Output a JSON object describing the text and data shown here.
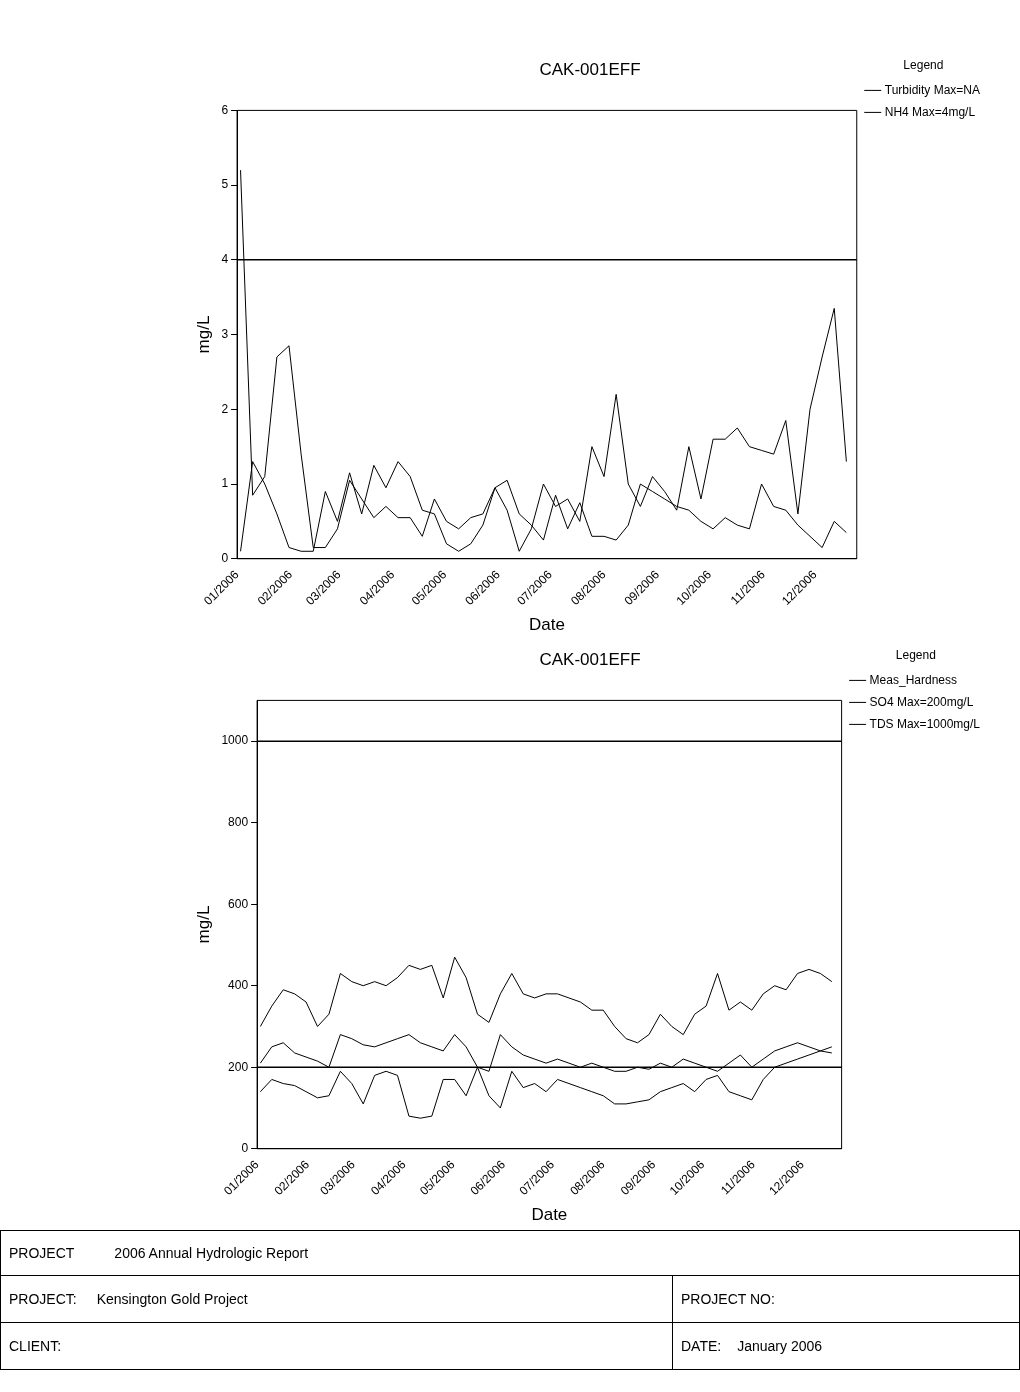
{
  "chart_data": [
    {
      "type": "line",
      "title": "CAK-001EFF",
      "xlabel": "Date",
      "ylabel": "mg/L",
      "legend": "top right",
      "legend_title": "Legend",
      "x": [
        "2006-01-03",
        "2006-01-10",
        "2006-01-17",
        "2006-01-24",
        "2006-01-31",
        "2006-02-07",
        "2006-02-14",
        "2006-02-21",
        "2006-02-28",
        "2006-03-07",
        "2006-03-14",
        "2006-03-21",
        "2006-03-28",
        "2006-04-04",
        "2006-04-11",
        "2006-04-18",
        "2006-04-25",
        "2006-05-02",
        "2006-05-09",
        "2006-05-16",
        "2006-05-23",
        "2006-05-30",
        "2006-06-06",
        "2006-06-13",
        "2006-06-20",
        "2006-06-27",
        "2006-07-04",
        "2006-07-11",
        "2006-07-18",
        "2006-07-25",
        "2006-08-01",
        "2006-08-08",
        "2006-08-15",
        "2006-08-22",
        "2006-08-29",
        "2006-09-05",
        "2006-09-12",
        "2006-09-19",
        "2006-09-26",
        "2006-10-03",
        "2006-10-10",
        "2006-10-17",
        "2006-10-24",
        "2006-10-31",
        "2006-11-07",
        "2006-11-14",
        "2006-11-21",
        "2006-11-28",
        "2006-12-05",
        "2006-12-12",
        "2006-12-19"
      ],
      "series": [
        {
          "name": "Turbidity Max=NA",
          "color": "#000000",
          "values": [
            5.2,
            0.85,
            1.1,
            2.7,
            2.85,
            1.4,
            0.15,
            0.15,
            0.4,
            1.05,
            0.8,
            0.55,
            0.7,
            0.55,
            0.55,
            0.3,
            0.8,
            0.5,
            0.4,
            0.55,
            0.6,
            0.95,
            1.05,
            0.6,
            0.45,
            0.25,
            0.85,
            0.4,
            0.75,
            0.3,
            0.3,
            0.25,
            0.45,
            1.0,
            0.9,
            0.8,
            0.7,
            0.65,
            0.5,
            0.4,
            0.55,
            0.45,
            0.4,
            1.0,
            0.7,
            0.65,
            0.45,
            0.3,
            0.15,
            0.5,
            0.35
          ]
        },
        {
          "name": "NH4 Max=4mg/L",
          "color": "#000000",
          "values": [
            0.1,
            1.3,
            1.0,
            0.6,
            0.15,
            0.1,
            0.1,
            0.9,
            0.5,
            1.15,
            0.6,
            1.25,
            0.95,
            1.3,
            1.1,
            0.65,
            0.6,
            0.2,
            0.1,
            0.2,
            0.45,
            0.95,
            0.65,
            0.1,
            0.4,
            1.0,
            0.7,
            0.8,
            0.5,
            1.5,
            1.1,
            2.2,
            1.0,
            0.7,
            1.1,
            0.9,
            0.65,
            1.5,
            0.8,
            1.6,
            1.6,
            1.75,
            1.5,
            1.45,
            1.4,
            1.85,
            0.6,
            2.0,
            2.7,
            3.35,
            1.3
          ]
        }
      ],
      "xlim": [
        "2006-01-01",
        "2006-12-25"
      ],
      "xticks": [
        {
          "value": "2006-01-01",
          "label": "01/2006"
        },
        {
          "value": "2006-02-01",
          "label": "02/2006"
        },
        {
          "value": "2006-03-01",
          "label": "03/2006"
        },
        {
          "value": "2006-04-01",
          "label": "04/2006"
        },
        {
          "value": "2006-05-01",
          "label": "05/2006"
        },
        {
          "value": "2006-06-01",
          "label": "06/2006"
        },
        {
          "value": "2006-07-01",
          "label": "07/2006"
        },
        {
          "value": "2006-08-01",
          "label": "08/2006"
        },
        {
          "value": "2006-09-01",
          "label": "09/2006"
        },
        {
          "value": "2006-10-01",
          "label": "10/2006"
        },
        {
          "value": "2006-11-01",
          "label": "11/2006"
        },
        {
          "value": "2006-12-01",
          "label": "12/2006"
        }
      ],
      "ylim": [
        0,
        6
      ],
      "yticks": [
        0,
        1,
        2,
        3,
        4,
        5,
        6
      ],
      "ref_lines": [
        {
          "axis": "y",
          "value": 4
        }
      ]
    },
    {
      "type": "line",
      "title": "CAK-001EFF",
      "xlabel": "Date",
      "ylabel": "mg/L",
      "legend": "top right",
      "legend_title": "Legend",
      "x": [
        "2006-01-03",
        "2006-01-10",
        "2006-01-17",
        "2006-01-24",
        "2006-01-31",
        "2006-02-07",
        "2006-02-14",
        "2006-02-21",
        "2006-02-28",
        "2006-03-07",
        "2006-03-14",
        "2006-03-21",
        "2006-03-28",
        "2006-04-04",
        "2006-04-11",
        "2006-04-18",
        "2006-04-25",
        "2006-05-02",
        "2006-05-09",
        "2006-05-16",
        "2006-05-23",
        "2006-05-30",
        "2006-06-06",
        "2006-06-13",
        "2006-06-20",
        "2006-06-27",
        "2006-07-04",
        "2006-07-11",
        "2006-07-18",
        "2006-07-25",
        "2006-08-01",
        "2006-08-08",
        "2006-08-15",
        "2006-08-22",
        "2006-08-29",
        "2006-09-05",
        "2006-09-12",
        "2006-09-19",
        "2006-09-26",
        "2006-10-03",
        "2006-10-10",
        "2006-10-17",
        "2006-10-24",
        "2006-10-31",
        "2006-11-07",
        "2006-11-14",
        "2006-11-21",
        "2006-11-28",
        "2006-12-05",
        "2006-12-12",
        "2006-12-19"
      ],
      "series": [
        {
          "name": "Meas_Hardness",
          "color": "#000000",
          "values": [
            210,
            250,
            260,
            235,
            225,
            215,
            200,
            280,
            270,
            255,
            250,
            260,
            270,
            280,
            260,
            250,
            240,
            280,
            250,
            200,
            190,
            280,
            250,
            230,
            220,
            210,
            220,
            210,
            200,
            210,
            200,
            190,
            190,
            200,
            195,
            210,
            200,
            220,
            210,
            200,
            190,
            210,
            230,
            200,
            220,
            240,
            250,
            260,
            250,
            240,
            250
          ]
        },
        {
          "name": "SO4 Max=200mg/L",
          "color": "#000000",
          "values": [
            140,
            170,
            160,
            155,
            140,
            125,
            130,
            190,
            160,
            110,
            180,
            190,
            180,
            80,
            75,
            80,
            170,
            170,
            130,
            200,
            130,
            100,
            190,
            150,
            160,
            140,
            170,
            160,
            150,
            140,
            130,
            110,
            110,
            115,
            120,
            140,
            150,
            160,
            140,
            170,
            180,
            140,
            130,
            120,
            170,
            200,
            210,
            220,
            230,
            240,
            235
          ]
        },
        {
          "name": "TDS Max=1000mg/L",
          "color": "#000000",
          "values": [
            300,
            350,
            390,
            380,
            360,
            300,
            330,
            430,
            410,
            400,
            410,
            400,
            420,
            450,
            440,
            450,
            370,
            470,
            420,
            330,
            310,
            380,
            430,
            380,
            370,
            380,
            380,
            370,
            360,
            340,
            340,
            300,
            270,
            260,
            280,
            330,
            300,
            280,
            330,
            350,
            430,
            340,
            360,
            340,
            380,
            400,
            390,
            430,
            440,
            430,
            410
          ]
        }
      ],
      "xlim": [
        "2006-01-01",
        "2006-12-25"
      ],
      "xticks": [
        {
          "value": "2006-01-01",
          "label": "01/2006"
        },
        {
          "value": "2006-02-01",
          "label": "02/2006"
        },
        {
          "value": "2006-03-01",
          "label": "03/2006"
        },
        {
          "value": "2006-04-01",
          "label": "04/2006"
        },
        {
          "value": "2006-05-01",
          "label": "05/2006"
        },
        {
          "value": "2006-06-01",
          "label": "06/2006"
        },
        {
          "value": "2006-07-01",
          "label": "07/2006"
        },
        {
          "value": "2006-08-01",
          "label": "08/2006"
        },
        {
          "value": "2006-09-01",
          "label": "09/2006"
        },
        {
          "value": "2006-10-01",
          "label": "10/2006"
        },
        {
          "value": "2006-11-01",
          "label": "11/2006"
        },
        {
          "value": "2006-12-01",
          "label": "12/2006"
        }
      ],
      "ylim": [
        0,
        1100
      ],
      "yticks": [
        0,
        200,
        400,
        600,
        800,
        1000
      ],
      "ref_lines": [
        {
          "axis": "y",
          "value": 1000
        },
        {
          "axis": "y",
          "value": 200
        }
      ]
    },
    {
      "type": "other",
      "annotations": [
        "PROJECT",
        "2006 Annual Hydrologic Report",
        "PROJECT:",
        "Kensington Gold Project",
        "PROJECT NO:",
        "CLIENT:",
        "DATE:",
        "January 2006"
      ]
    }
  ]
}
